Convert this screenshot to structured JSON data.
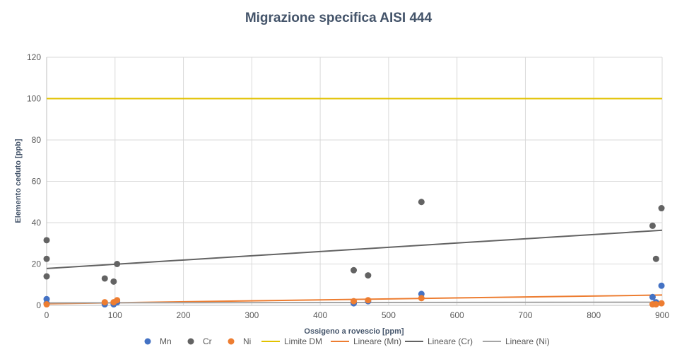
{
  "chart_data": {
    "type": "scatter",
    "title": "Migrazione specifica AISI 444",
    "xlabel": "Ossigeno a rovescio [ppm]",
    "ylabel": "Elemento ceduto [ppb]",
    "xlim": [
      0,
      900
    ],
    "ylim": [
      0,
      120
    ],
    "xticks": [
      "0",
      "100",
      "200",
      "300",
      "400",
      "500",
      "600",
      "700",
      "800",
      "900"
    ],
    "yticks": [
      "0",
      "20",
      "40",
      "60",
      "80",
      "100",
      "120"
    ],
    "grid": true,
    "legend_position": "bottom",
    "series": [
      {
        "name": "Mn",
        "kind": "points",
        "color": "#4472c4",
        "points": [
          [
            0,
            3
          ],
          [
            0,
            1
          ],
          [
            85,
            0.5
          ],
          [
            98,
            0.5
          ],
          [
            103,
            1.5
          ],
          [
            449,
            1
          ],
          [
            470,
            2
          ],
          [
            548,
            5.5
          ],
          [
            886,
            4
          ],
          [
            891,
            1.5
          ],
          [
            899,
            9.5
          ]
        ]
      },
      {
        "name": "Cr",
        "kind": "points",
        "color": "#636363",
        "points": [
          [
            0,
            31.5
          ],
          [
            0,
            22.5
          ],
          [
            0,
            14
          ],
          [
            85,
            13
          ],
          [
            98,
            11.5
          ],
          [
            103,
            20
          ],
          [
            449,
            17
          ],
          [
            470,
            14.5
          ],
          [
            548,
            50
          ],
          [
            886,
            38.5
          ],
          [
            891,
            22.5
          ],
          [
            899,
            47
          ]
        ]
      },
      {
        "name": "Ni",
        "kind": "points",
        "color": "#ed7d31",
        "points": [
          [
            0,
            0.5
          ],
          [
            85,
            1.5
          ],
          [
            98,
            1.5
          ],
          [
            103,
            2.5
          ],
          [
            449,
            2
          ],
          [
            470,
            2.5
          ],
          [
            548,
            3.5
          ],
          [
            886,
            0.5
          ],
          [
            891,
            0.5
          ],
          [
            899,
            1
          ]
        ]
      },
      {
        "name": "Limite DM",
        "kind": "line",
        "color": "#e2c200",
        "points": [
          [
            0,
            100
          ],
          [
            900,
            100
          ]
        ]
      },
      {
        "name": "Lineare (Mn)",
        "kind": "line",
        "color": "#ed7d31",
        "points": [
          [
            0,
            0.8
          ],
          [
            900,
            5
          ]
        ]
      },
      {
        "name": "Lineare (Cr)",
        "kind": "line",
        "color": "#636363",
        "points": [
          [
            0,
            17.8
          ],
          [
            900,
            36.3
          ]
        ]
      },
      {
        "name": "Lineare (Ni)",
        "kind": "line",
        "color": "#a5a5a5",
        "points": [
          [
            0,
            1.2
          ],
          [
            900,
            1.5
          ]
        ]
      }
    ]
  }
}
